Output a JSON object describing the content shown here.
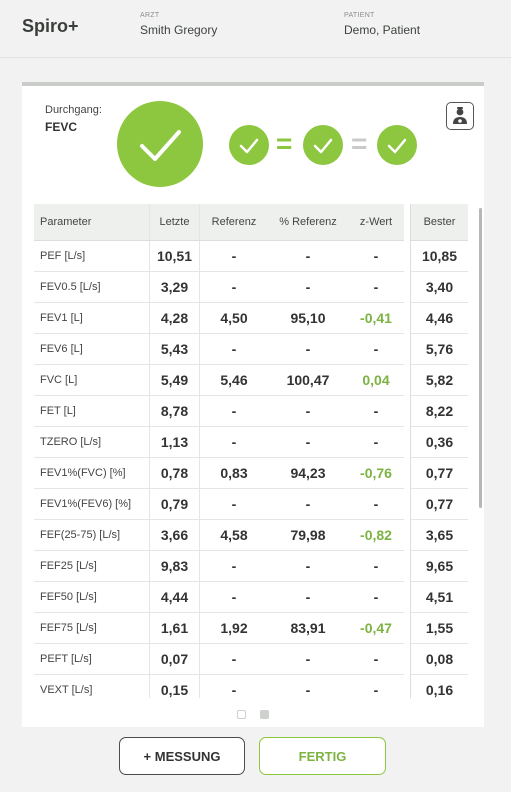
{
  "header": {
    "app_name": "Spiro+",
    "arzt_label": "ARZT",
    "arzt_value": "Smith Gregory",
    "patient_label": "PATIENT",
    "patient_value": "Demo, Patient"
  },
  "trial": {
    "label": "Durchgang:",
    "value": "FEVC",
    "status": "accepted"
  },
  "colors": {
    "accent_green": "#8dc63f",
    "z_green": "#7cb342"
  },
  "table": {
    "headers": {
      "param": "Parameter",
      "letzte": "Letzte",
      "ref": "Referenz",
      "pref": "% Referenz",
      "z": "z-Wert",
      "best": "Bester"
    },
    "rows": [
      {
        "param": "PEF [L/s]",
        "letzte": "10,51",
        "ref": "-",
        "pref": "-",
        "z": "-",
        "best": "10,85"
      },
      {
        "param": "FEV0.5 [L/s]",
        "letzte": "3,29",
        "ref": "-",
        "pref": "-",
        "z": "-",
        "best": "3,40"
      },
      {
        "param": "FEV1 [L]",
        "letzte": "4,28",
        "ref": "4,50",
        "pref": "95,10",
        "z": "-0,41",
        "best": "4,46"
      },
      {
        "param": "FEV6 [L]",
        "letzte": "5,43",
        "ref": "-",
        "pref": "-",
        "z": "-",
        "best": "5,76"
      },
      {
        "param": "FVC [L]",
        "letzte": "5,49",
        "ref": "5,46",
        "pref": "100,47",
        "z": "0,04",
        "best": "5,82"
      },
      {
        "param": "FET [L]",
        "letzte": "8,78",
        "ref": "-",
        "pref": "-",
        "z": "-",
        "best": "8,22"
      },
      {
        "param": "TZERO [L/s]",
        "letzte": "1,13",
        "ref": "-",
        "pref": "-",
        "z": "-",
        "best": "0,36"
      },
      {
        "param": "FEV1%(FVC) [%]",
        "letzte": "0,78",
        "ref": "0,83",
        "pref": "94,23",
        "z": "-0,76",
        "best": "0,77"
      },
      {
        "param": "FEV1%(FEV6) [%]",
        "letzte": "0,79",
        "ref": "-",
        "pref": "-",
        "z": "-",
        "best": "0,77"
      },
      {
        "param": "FEF(25-75) [L/s]",
        "letzte": "3,66",
        "ref": "4,58",
        "pref": "79,98",
        "z": "-0,82",
        "best": "3,65"
      },
      {
        "param": "FEF25 [L/s]",
        "letzte": "9,83",
        "ref": "-",
        "pref": "-",
        "z": "-",
        "best": "9,65"
      },
      {
        "param": "FEF50 [L/s]",
        "letzte": "4,44",
        "ref": "-",
        "pref": "-",
        "z": "-",
        "best": "4,51"
      },
      {
        "param": "FEF75 [L/s]",
        "letzte": "1,61",
        "ref": "1,92",
        "pref": "83,91",
        "z": "-0,47",
        "best": "1,55"
      },
      {
        "param": "PEFT [L/s]",
        "letzte": "0,07",
        "ref": "-",
        "pref": "-",
        "z": "-",
        "best": "0,08"
      },
      {
        "param": "VEXT [L/s]",
        "letzte": "0,15",
        "ref": "-",
        "pref": "-",
        "z": "-",
        "best": "0,16"
      }
    ]
  },
  "pagination": {
    "pages": 2,
    "current": 2
  },
  "buttons": {
    "messung": "+ MESSUNG",
    "fertig": "FERTIG"
  }
}
